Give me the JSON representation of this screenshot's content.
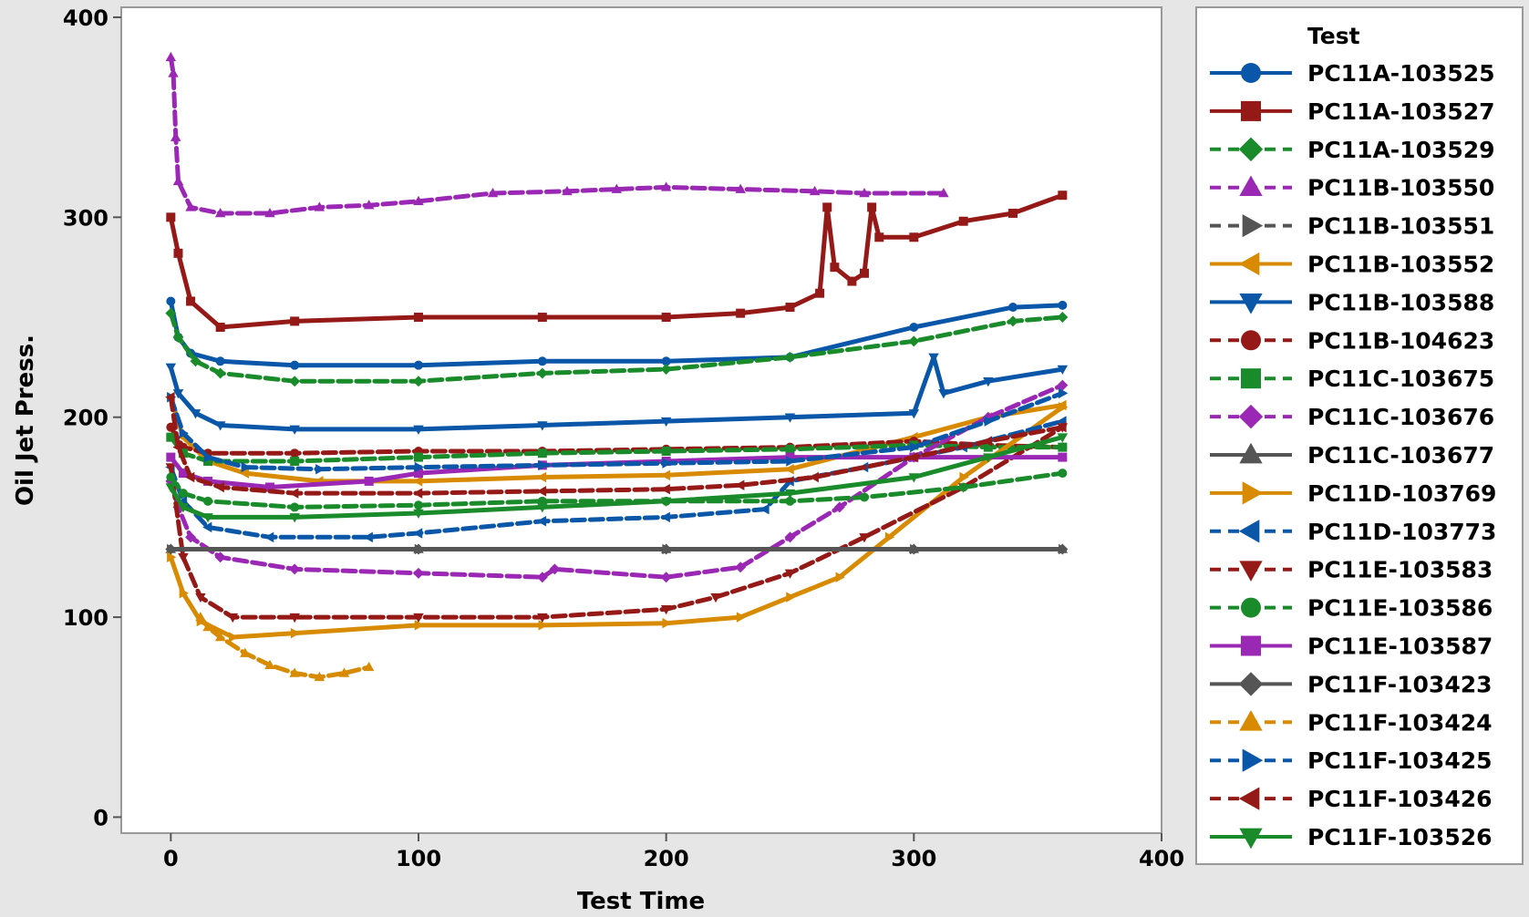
{
  "chart_data": {
    "type": "line",
    "title": "",
    "xlabel": "Test Time",
    "ylabel": "Oil Jet Press.",
    "xlim": [
      -20,
      400
    ],
    "ylim": [
      -8,
      405
    ],
    "x_ticks": [
      0,
      100,
      200,
      300,
      400
    ],
    "y_ticks": [
      0,
      100,
      200,
      300,
      400
    ],
    "x_tick_labels": [
      "0",
      "100",
      "200",
      "300",
      "400"
    ],
    "y_tick_labels": [
      "0",
      "100",
      "200",
      "300",
      "400"
    ],
    "grid": false,
    "legend": {
      "title": "Test",
      "placement": "right"
    },
    "series": [
      {
        "name": "PC11A-103525",
        "color": "#0a56a8",
        "marker": "circle",
        "dash": "solid",
        "points": [
          [
            0,
            258
          ],
          [
            3,
            240
          ],
          [
            8,
            232
          ],
          [
            20,
            228
          ],
          [
            50,
            226
          ],
          [
            100,
            226
          ],
          [
            150,
            228
          ],
          [
            200,
            228
          ],
          [
            250,
            230
          ],
          [
            300,
            245
          ],
          [
            340,
            255
          ],
          [
            360,
            256
          ]
        ]
      },
      {
        "name": "PC11A-103527",
        "color": "#951917",
        "marker": "square",
        "dash": "solid",
        "points": [
          [
            0,
            300
          ],
          [
            3,
            282
          ],
          [
            8,
            258
          ],
          [
            20,
            245
          ],
          [
            50,
            248
          ],
          [
            100,
            250
          ],
          [
            150,
            250
          ],
          [
            200,
            250
          ],
          [
            230,
            252
          ],
          [
            250,
            255
          ],
          [
            262,
            262
          ],
          [
            265,
            305
          ],
          [
            268,
            275
          ],
          [
            275,
            268
          ],
          [
            280,
            272
          ],
          [
            283,
            305
          ],
          [
            286,
            290
          ],
          [
            300,
            290
          ],
          [
            320,
            298
          ],
          [
            340,
            302
          ],
          [
            360,
            311
          ]
        ]
      },
      {
        "name": "PC11A-103529",
        "color": "#1a8b2a",
        "marker": "diamond",
        "dash": "dashed",
        "points": [
          [
            0,
            252
          ],
          [
            3,
            240
          ],
          [
            10,
            228
          ],
          [
            20,
            222
          ],
          [
            50,
            218
          ],
          [
            100,
            218
          ],
          [
            150,
            222
          ],
          [
            200,
            224
          ],
          [
            250,
            230
          ],
          [
            300,
            238
          ],
          [
            340,
            248
          ],
          [
            360,
            250
          ]
        ]
      },
      {
        "name": "PC11B-103550",
        "color": "#9b27b5",
        "marker": "triangle-up",
        "dash": "dashed",
        "points": [
          [
            0,
            380
          ],
          [
            1,
            372
          ],
          [
            2,
            340
          ],
          [
            3,
            318
          ],
          [
            8,
            305
          ],
          [
            20,
            302
          ],
          [
            40,
            302
          ],
          [
            60,
            305
          ],
          [
            80,
            306
          ],
          [
            100,
            308
          ],
          [
            130,
            312
          ],
          [
            160,
            313
          ],
          [
            180,
            314
          ],
          [
            200,
            315
          ],
          [
            230,
            314
          ],
          [
            260,
            313
          ],
          [
            280,
            312
          ],
          [
            312,
            312
          ]
        ]
      },
      {
        "name": "PC11B-103551",
        "color": "#555555",
        "marker": "triangle-right",
        "dash": "dashed",
        "points": [
          [
            0,
            134
          ],
          [
            100,
            134
          ],
          [
            200,
            134
          ],
          [
            300,
            134
          ],
          [
            360,
            134
          ]
        ]
      },
      {
        "name": "PC11B-103552",
        "color": "#d88a00",
        "marker": "triangle-left",
        "dash": "solid",
        "points": [
          [
            0,
            210
          ],
          [
            5,
            190
          ],
          [
            15,
            178
          ],
          [
            30,
            172
          ],
          [
            60,
            168
          ],
          [
            100,
            168
          ],
          [
            150,
            170
          ],
          [
            200,
            171
          ],
          [
            250,
            174
          ],
          [
            300,
            190
          ],
          [
            330,
            200
          ],
          [
            360,
            206
          ]
        ]
      },
      {
        "name": "PC11B-103588",
        "color": "#0a56a8",
        "marker": "triangle-down",
        "dash": "solid",
        "points": [
          [
            0,
            225
          ],
          [
            3,
            212
          ],
          [
            10,
            202
          ],
          [
            20,
            196
          ],
          [
            50,
            194
          ],
          [
            100,
            194
          ],
          [
            150,
            196
          ],
          [
            200,
            198
          ],
          [
            250,
            200
          ],
          [
            300,
            202
          ],
          [
            308,
            230
          ],
          [
            312,
            212
          ],
          [
            330,
            218
          ],
          [
            360,
            224
          ]
        ]
      },
      {
        "name": "PC11B-104623",
        "color": "#951917",
        "marker": "circle",
        "dash": "dashed",
        "points": [
          [
            0,
            195
          ],
          [
            5,
            185
          ],
          [
            15,
            182
          ],
          [
            50,
            182
          ],
          [
            100,
            183
          ],
          [
            150,
            183
          ],
          [
            200,
            184
          ],
          [
            250,
            185
          ],
          [
            300,
            188
          ],
          [
            330,
            186
          ],
          [
            360,
            185
          ]
        ]
      },
      {
        "name": "PC11C-103675",
        "color": "#1a8b2a",
        "marker": "square",
        "dash": "dashed",
        "points": [
          [
            0,
            190
          ],
          [
            5,
            182
          ],
          [
            15,
            178
          ],
          [
            50,
            178
          ],
          [
            100,
            180
          ],
          [
            150,
            182
          ],
          [
            200,
            183
          ],
          [
            250,
            184
          ],
          [
            300,
            186
          ],
          [
            330,
            185
          ],
          [
            360,
            185
          ]
        ]
      },
      {
        "name": "PC11C-103676",
        "color": "#9b27b5",
        "marker": "diamond",
        "dash": "dashed",
        "points": [
          [
            0,
            168
          ],
          [
            3,
            155
          ],
          [
            8,
            140
          ],
          [
            20,
            130
          ],
          [
            50,
            124
          ],
          [
            100,
            122
          ],
          [
            150,
            120
          ],
          [
            155,
            124
          ],
          [
            200,
            120
          ],
          [
            230,
            125
          ],
          [
            250,
            140
          ],
          [
            270,
            155
          ],
          [
            300,
            180
          ],
          [
            330,
            200
          ],
          [
            360,
            216
          ]
        ]
      },
      {
        "name": "PC11C-103677",
        "color": "#555555",
        "marker": "triangle-up",
        "dash": "solid",
        "points": [
          [
            0,
            134
          ],
          [
            100,
            134
          ],
          [
            200,
            134
          ],
          [
            300,
            134
          ],
          [
            360,
            134
          ]
        ]
      },
      {
        "name": "PC11D-103769",
        "color": "#d88a00",
        "marker": "triangle-right",
        "dash": "solid",
        "points": [
          [
            0,
            130
          ],
          [
            5,
            112
          ],
          [
            12,
            98
          ],
          [
            25,
            90
          ],
          [
            50,
            92
          ],
          [
            100,
            96
          ],
          [
            150,
            96
          ],
          [
            200,
            97
          ],
          [
            230,
            100
          ],
          [
            250,
            110
          ],
          [
            270,
            120
          ],
          [
            290,
            140
          ],
          [
            320,
            170
          ],
          [
            360,
            205
          ]
        ]
      },
      {
        "name": "PC11D-103773",
        "color": "#0a56a8",
        "marker": "triangle-left",
        "dash": "dashed",
        "points": [
          [
            0,
            175
          ],
          [
            5,
            158
          ],
          [
            15,
            145
          ],
          [
            40,
            140
          ],
          [
            80,
            140
          ],
          [
            100,
            142
          ],
          [
            150,
            148
          ],
          [
            200,
            150
          ],
          [
            240,
            154
          ],
          [
            250,
            168
          ],
          [
            280,
            175
          ],
          [
            320,
            185
          ],
          [
            360,
            198
          ]
        ]
      },
      {
        "name": "PC11E-103583",
        "color": "#951917",
        "marker": "triangle-down",
        "dash": "dashed",
        "points": [
          [
            0,
            175
          ],
          [
            5,
            130
          ],
          [
            12,
            110
          ],
          [
            25,
            100
          ],
          [
            50,
            100
          ],
          [
            100,
            100
          ],
          [
            150,
            100
          ],
          [
            200,
            104
          ],
          [
            220,
            110
          ],
          [
            250,
            122
          ],
          [
            280,
            140
          ],
          [
            320,
            165
          ],
          [
            360,
            195
          ]
        ]
      },
      {
        "name": "PC11E-103586",
        "color": "#1a8b2a",
        "marker": "circle",
        "dash": "dashed",
        "points": [
          [
            0,
            170
          ],
          [
            5,
            162
          ],
          [
            15,
            158
          ],
          [
            50,
            155
          ],
          [
            100,
            156
          ],
          [
            150,
            158
          ],
          [
            200,
            158
          ],
          [
            250,
            158
          ],
          [
            280,
            160
          ],
          [
            320,
            165
          ],
          [
            360,
            172
          ]
        ]
      },
      {
        "name": "PC11E-103587",
        "color": "#9b27b5",
        "marker": "square",
        "dash": "solid",
        "points": [
          [
            0,
            180
          ],
          [
            5,
            172
          ],
          [
            15,
            168
          ],
          [
            40,
            165
          ],
          [
            80,
            168
          ],
          [
            100,
            172
          ],
          [
            150,
            176
          ],
          [
            200,
            178
          ],
          [
            250,
            180
          ],
          [
            300,
            180
          ],
          [
            360,
            180
          ]
        ]
      },
      {
        "name": "PC11F-103423",
        "color": "#555555",
        "marker": "diamond",
        "dash": "solid",
        "points": [
          [
            0,
            134
          ],
          [
            100,
            134
          ],
          [
            200,
            134
          ],
          [
            300,
            134
          ],
          [
            360,
            134
          ]
        ]
      },
      {
        "name": "PC11F-103424",
        "color": "#d88a00",
        "marker": "triangle-up",
        "dash": "dashed",
        "points": [
          [
            12,
            100
          ],
          [
            15,
            95
          ],
          [
            20,
            90
          ],
          [
            30,
            82
          ],
          [
            40,
            76
          ],
          [
            50,
            72
          ],
          [
            60,
            70
          ],
          [
            70,
            72
          ],
          [
            80,
            75
          ]
        ]
      },
      {
        "name": "PC11F-103425",
        "color": "#0a56a8",
        "marker": "triangle-right",
        "dash": "dashed",
        "points": [
          [
            0,
            210
          ],
          [
            5,
            192
          ],
          [
            15,
            180
          ],
          [
            30,
            175
          ],
          [
            60,
            174
          ],
          [
            100,
            175
          ],
          [
            150,
            176
          ],
          [
            200,
            177
          ],
          [
            250,
            178
          ],
          [
            300,
            185
          ],
          [
            330,
            198
          ],
          [
            360,
            212
          ]
        ]
      },
      {
        "name": "PC11F-103426",
        "color": "#951917",
        "marker": "triangle-left",
        "dash": "dashed",
        "points": [
          [
            0,
            210
          ],
          [
            3,
            185
          ],
          [
            8,
            170
          ],
          [
            20,
            165
          ],
          [
            50,
            162
          ],
          [
            100,
            162
          ],
          [
            150,
            163
          ],
          [
            200,
            164
          ],
          [
            230,
            166
          ],
          [
            260,
            170
          ],
          [
            300,
            180
          ],
          [
            330,
            188
          ],
          [
            360,
            195
          ]
        ]
      },
      {
        "name": "PC11F-103526",
        "color": "#1a8b2a",
        "marker": "triangle-down",
        "dash": "solid",
        "points": [
          [
            0,
            165
          ],
          [
            5,
            155
          ],
          [
            15,
            150
          ],
          [
            50,
            150
          ],
          [
            100,
            152
          ],
          [
            150,
            155
          ],
          [
            200,
            158
          ],
          [
            250,
            162
          ],
          [
            300,
            170
          ],
          [
            330,
            180
          ],
          [
            360,
            190
          ]
        ]
      }
    ]
  }
}
